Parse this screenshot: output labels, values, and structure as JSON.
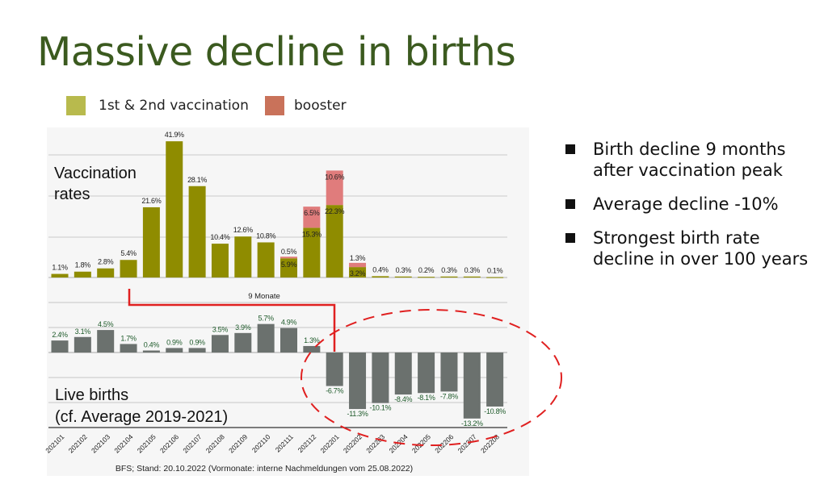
{
  "title": "Massive decline in births",
  "legend": [
    {
      "label": "1st & 2nd vaccination",
      "color": "#b8ba4d"
    },
    {
      "label": "booster",
      "color": "#c9725a"
    }
  ],
  "bullets": [
    "Birth decline  9 months after vaccination peak",
    "Average decline  -10%",
    "Strongest birth rate decline in over 100 years"
  ],
  "chart_data": {
    "type": "bar",
    "categories": [
      "202101",
      "202102",
      "202103",
      "202104",
      "202105",
      "202106",
      "202107",
      "202108",
      "202109",
      "202110",
      "202111",
      "202112",
      "202201",
      "202202",
      "202203",
      "202204",
      "202205",
      "202206",
      "202207",
      "202208"
    ],
    "panels": [
      {
        "label": "Vaccination rates",
        "stacked": true,
        "series": [
          {
            "name": "1st & 2nd vaccination",
            "color": "#8f8c00",
            "values": [
              1.1,
              1.8,
              2.8,
              5.4,
              21.6,
              41.9,
              28.1,
              10.4,
              12.6,
              10.8,
              5.9,
              15.3,
              22.3,
              3.2,
              0.4,
              0.3,
              0.2,
              0.3,
              0.3,
              0.1
            ]
          },
          {
            "name": "booster",
            "color": "#e07c7c",
            "values": [
              null,
              null,
              null,
              null,
              null,
              null,
              null,
              null,
              null,
              null,
              0.5,
              6.5,
              10.6,
              1.3,
              null,
              null,
              null,
              null,
              null,
              null
            ]
          }
        ],
        "unit": "%",
        "grid": true
      },
      {
        "label": "Live births\n(cf. Average 2019-2021)",
        "series": [
          {
            "color": "#6b716e",
            "values": [
              2.4,
              3.1,
              4.5,
              1.7,
              0.4,
              0.9,
              0.9,
              3.5,
              3.9,
              5.7,
              4.9,
              1.3,
              -6.7,
              -11.3,
              -10.1,
              -8.4,
              -8.1,
              -7.8,
              -13.2,
              -10.8
            ]
          }
        ],
        "unit": "%",
        "grid": true
      }
    ],
    "annotations": {
      "lag_label": "9 Monate",
      "lag_color": "#e02020"
    },
    "source": "BFS; Stand: 20.10.2022 (Vormonate: interne Nachmeldungen vom 25.08.2022)"
  }
}
